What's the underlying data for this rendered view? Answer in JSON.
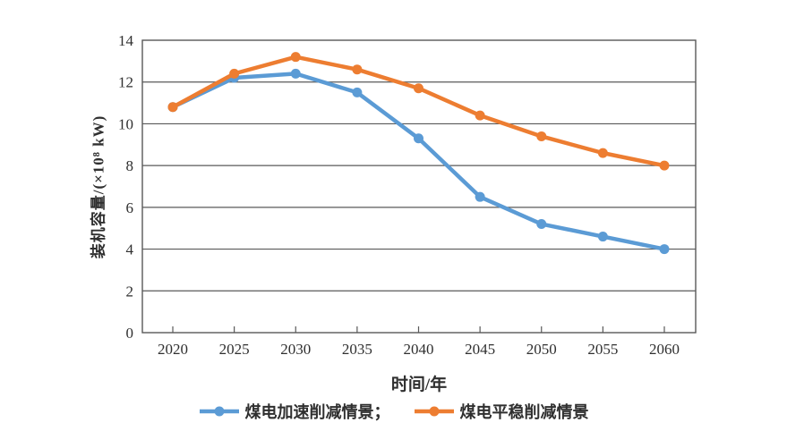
{
  "chart_data": {
    "type": "line",
    "title": "",
    "xlabel": "时间/年",
    "ylabel": "装机容量/(×10⁸ kW)",
    "x": [
      2020,
      2025,
      2030,
      2035,
      2040,
      2045,
      2050,
      2055,
      2060
    ],
    "yticks": [
      0,
      2,
      4,
      6,
      8,
      10,
      12,
      14
    ],
    "ylim": [
      0,
      14
    ],
    "grid": "horizontal",
    "legend_position": "bottom",
    "axis_color": "#595959",
    "series": [
      {
        "id": "accelerated-cut",
        "name": "煤电加速削减情景",
        "color": "#5B9BD5",
        "values": [
          10.8,
          12.2,
          12.4,
          11.5,
          9.3,
          6.5,
          5.2,
          4.6,
          4.0
        ]
      },
      {
        "id": "steady-cut",
        "name": "煤电平稳削减情景",
        "color": "#ED7D31",
        "values": [
          10.8,
          12.4,
          13.2,
          12.6,
          11.7,
          10.4,
          9.4,
          8.6,
          8.0
        ]
      }
    ],
    "legend_labels": [
      "煤电加速削减情景；",
      "煤电平稳削减情景"
    ]
  }
}
